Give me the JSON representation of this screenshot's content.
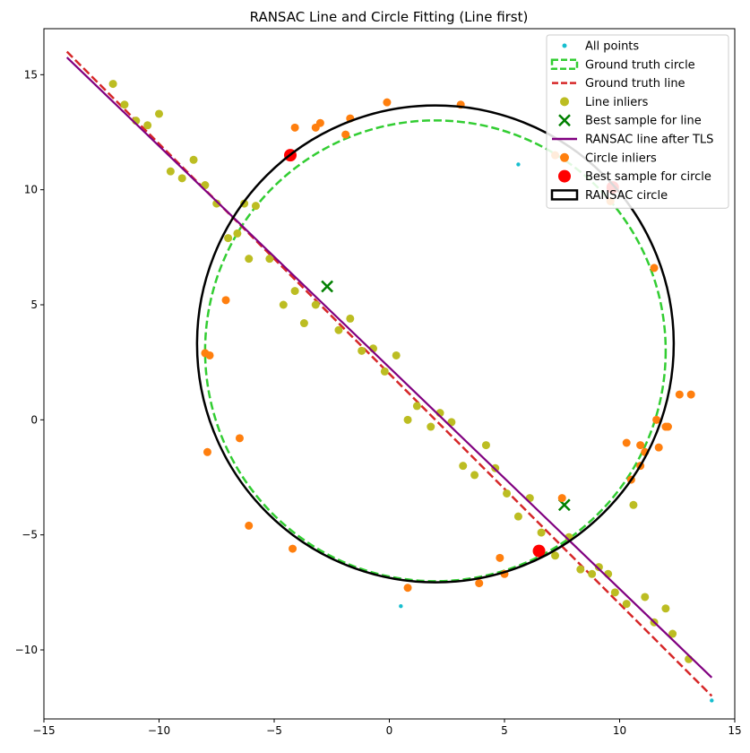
{
  "chart_data": {
    "type": "scatter",
    "title": "RANSAC Line and Circle Fitting (Line first)",
    "xlabel": "",
    "ylabel": "",
    "xlim": [
      -15,
      15
    ],
    "ylim": [
      -13,
      17
    ],
    "x_ticks": [
      -15,
      -10,
      -5,
      0,
      5,
      10,
      15
    ],
    "y_ticks": [
      -10,
      -5,
      0,
      5,
      10,
      15
    ],
    "x_tick_labels": [
      "−15",
      "−10",
      "−5",
      "0",
      "5",
      "10",
      "15"
    ],
    "y_tick_labels": [
      "−10",
      "−5",
      "0",
      "5",
      "10",
      "15"
    ],
    "legend_position": "top-right",
    "colors": {
      "all_points": "#17becf",
      "gt_circle": "#32cd32",
      "gt_line": "#d62728",
      "line_inliers": "#bcbd22",
      "best_line_sample": "#008000",
      "ransac_line": "#800080",
      "circle_inliers": "#ff7f0e",
      "best_circle_sample": "#ff0000",
      "ransac_circle": "#000000"
    },
    "legend": [
      {
        "key": "all_points",
        "label": "All points"
      },
      {
        "key": "gt_circle",
        "label": "Ground truth circle"
      },
      {
        "key": "gt_line",
        "label": "Ground truth line"
      },
      {
        "key": "line_inliers",
        "label": "Line inliers"
      },
      {
        "key": "best_line_sample",
        "label": "Best sample for line"
      },
      {
        "key": "ransac_line",
        "label": "RANSAC line after TLS"
      },
      {
        "key": "circle_inliers",
        "label": "Circle inliers"
      },
      {
        "key": "best_circle_sample",
        "label": "Best sample for circle"
      },
      {
        "key": "ransac_circle",
        "label": "RANSAC circle"
      }
    ],
    "series": [
      {
        "name": "Ground truth circle",
        "key": "gt_circle",
        "kind": "circle",
        "center": [
          2,
          3
        ],
        "radius": 10
      },
      {
        "name": "RANSAC circle",
        "key": "ransac_circle",
        "kind": "circle",
        "center": [
          2,
          3.3
        ],
        "radius": 10.35
      },
      {
        "name": "Ground truth line",
        "key": "gt_line",
        "kind": "line",
        "x": [
          -14,
          14
        ],
        "y": [
          16,
          -12
        ]
      },
      {
        "name": "RANSAC line after TLS",
        "key": "ransac_line",
        "kind": "line",
        "x": [
          -14,
          14
        ],
        "y": [
          15.75,
          -11.2
        ]
      },
      {
        "name": "All points",
        "key": "all_points",
        "kind": "points",
        "x": [
          5.6,
          0.5,
          14
        ],
        "y": [
          11.1,
          -8.1,
          -12.2
        ]
      },
      {
        "name": "Line inliers",
        "key": "line_inliers",
        "kind": "points",
        "x": [
          -12,
          -11.5,
          -11,
          -10.5,
          -10,
          -9.5,
          -9,
          -8.5,
          -8,
          -7.5,
          -7,
          -6.6,
          -6.3,
          -6.1,
          -5.8,
          -5.2,
          -4.6,
          -4.1,
          -3.7,
          -3.2,
          -2.2,
          -1.7,
          -1.2,
          -0.7,
          -0.2,
          0.3,
          0.8,
          1.2,
          1.8,
          2.2,
          2.7,
          3.2,
          3.7,
          4.2,
          4.6,
          5.1,
          5.6,
          6.1,
          6.6,
          7.2,
          7.8,
          8.3,
          8.8,
          9.1,
          9.5,
          9.8,
          10.3,
          10.6,
          11.1,
          11.5,
          12,
          12.3,
          13
        ],
        "y": [
          14.6,
          13.7,
          13,
          12.8,
          13.3,
          10.8,
          10.5,
          11.3,
          10.2,
          9.4,
          7.9,
          8.1,
          9.4,
          7,
          9.3,
          7,
          5,
          5.6,
          4.2,
          5,
          3.9,
          4.4,
          3,
          3.1,
          2.1,
          2.8,
          0,
          0.6,
          -0.3,
          0.3,
          -0.1,
          -2,
          -2.4,
          -1.1,
          -2.1,
          -3.2,
          -4.2,
          -3.4,
          -4.9,
          -5.9,
          -5.1,
          -6.5,
          -6.7,
          -6.4,
          -6.7,
          -7.5,
          -8,
          -3.7,
          -7.7,
          -8.8,
          -8.2,
          -9.3,
          -10.4
        ]
      },
      {
        "name": "Circle inliers",
        "key": "circle_inliers",
        "kind": "points",
        "x": [
          -4.1,
          -3.2,
          -3,
          -1.9,
          -1.7,
          -0.1,
          3.1,
          7.2,
          9.6,
          11.5,
          12.6,
          13.1,
          11.6,
          12,
          12.1,
          11.7,
          10.3,
          10.9,
          11.1,
          10.9,
          10.5,
          7.5,
          4.8,
          5,
          3.9,
          0.8,
          -4.2,
          -6.1,
          -6.5,
          -7.1,
          -7.8,
          -8,
          -7.9
        ],
        "y": [
          12.7,
          12.7,
          12.9,
          12.4,
          13.1,
          13.8,
          13.7,
          11.5,
          9.5,
          6.6,
          1.1,
          1.1,
          0,
          -0.3,
          -0.3,
          -1.2,
          -1,
          -1.1,
          -1.4,
          -2,
          -2.6,
          -3.4,
          -6,
          -6.7,
          -7.1,
          -7.3,
          -5.6,
          -4.6,
          -0.8,
          5.2,
          2.8,
          2.9,
          -1.4
        ]
      },
      {
        "name": "Best sample for line",
        "key": "best_line_sample",
        "kind": "x-markers",
        "x": [
          -2.7,
          7.6
        ],
        "y": [
          5.8,
          -3.7
        ]
      },
      {
        "name": "Best sample for circle",
        "key": "best_circle_sample",
        "kind": "big-points",
        "x": [
          -4.3,
          6.5,
          9.7
        ],
        "y": [
          11.5,
          -5.7,
          10.1
        ]
      }
    ]
  }
}
